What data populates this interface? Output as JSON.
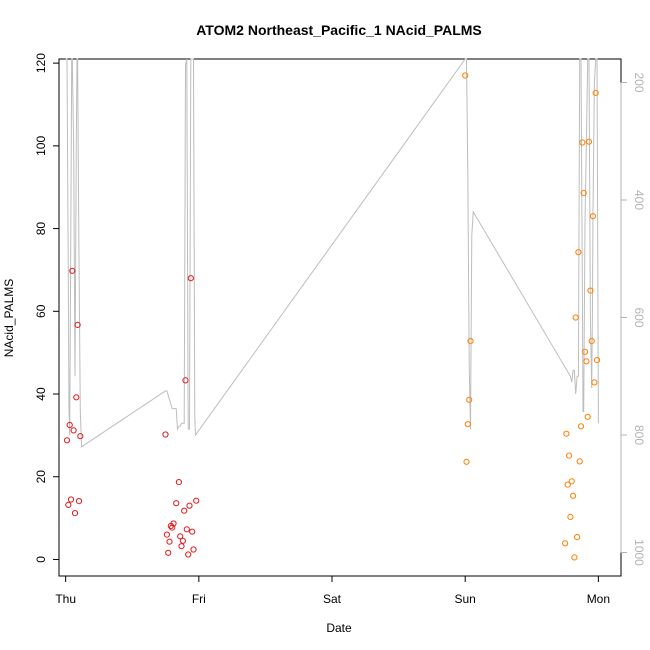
{
  "chart_data": {
    "type": "scatter",
    "title": "ATOM2 Northeast_Pacific_1 NAcid_PALMS",
    "xlabel": "Date",
    "ylabel": "NAcid_PALMS",
    "x_ticks": [
      "Thu",
      "Fri",
      "Sat",
      "Sun",
      "Mon"
    ],
    "xlim": [
      -0.05,
      4.17
    ],
    "ylim": [
      -4,
      121
    ],
    "y_ticks": [
      0,
      20,
      40,
      60,
      80,
      100,
      120
    ],
    "y2_ticks": [
      200,
      400,
      600,
      800,
      1000
    ],
    "y2lim": [
      1040,
      160
    ],
    "grid": false,
    "series": [
      {
        "color": "#e41a1c",
        "points": [
          [
            0.01,
            28.8
          ],
          [
            0.02,
            13.2
          ],
          [
            0.03,
            32.5
          ],
          [
            0.04,
            14.5
          ],
          [
            0.05,
            69.8
          ],
          [
            0.06,
            31.2
          ],
          [
            0.07,
            11.2
          ],
          [
            0.08,
            39.2
          ],
          [
            0.09,
            56.7
          ],
          [
            0.1,
            14.1
          ],
          [
            0.11,
            29.8
          ],
          [
            0.75,
            30.2
          ],
          [
            0.76,
            6.0
          ],
          [
            0.77,
            1.6
          ],
          [
            0.78,
            4.3
          ],
          [
            0.79,
            8.1
          ],
          [
            0.8,
            7.7
          ],
          [
            0.81,
            8.7
          ],
          [
            0.83,
            13.6
          ],
          [
            0.85,
            18.7
          ],
          [
            0.86,
            5.6
          ],
          [
            0.87,
            3.2
          ],
          [
            0.88,
            4.5
          ],
          [
            0.89,
            11.8
          ],
          [
            0.9,
            43.3
          ],
          [
            0.91,
            7.3
          ],
          [
            0.92,
            1.2
          ],
          [
            0.93,
            13.0
          ],
          [
            0.94,
            68.0
          ],
          [
            0.95,
            6.7
          ],
          [
            0.96,
            2.4
          ],
          [
            0.98,
            14.2
          ]
        ]
      },
      {
        "color": "#ff7f00",
        "points": [
          [
            3.0,
            117.0
          ],
          [
            3.01,
            23.6
          ],
          [
            3.02,
            32.7
          ],
          [
            3.03,
            38.6
          ],
          [
            3.04,
            52.8
          ],
          [
            3.75,
            3.9
          ],
          [
            3.76,
            30.4
          ],
          [
            3.77,
            18.1
          ],
          [
            3.78,
            25.1
          ],
          [
            3.79,
            10.3
          ],
          [
            3.8,
            18.9
          ],
          [
            3.81,
            15.4
          ],
          [
            3.82,
            0.5
          ],
          [
            3.83,
            58.5
          ],
          [
            3.84,
            5.4
          ],
          [
            3.85,
            74.3
          ],
          [
            3.86,
            23.7
          ],
          [
            3.87,
            32.2
          ],
          [
            3.88,
            100.8
          ],
          [
            3.89,
            88.6
          ],
          [
            3.9,
            50.2
          ],
          [
            3.91,
            47.9
          ],
          [
            3.92,
            34.5
          ],
          [
            3.93,
            101.0
          ],
          [
            3.94,
            65.0
          ],
          [
            3.95,
            52.8
          ],
          [
            3.96,
            83.0
          ],
          [
            3.97,
            42.8
          ],
          [
            3.98,
            112.8
          ],
          [
            3.99,
            48.2
          ]
        ]
      },
      {
        "color": "#bdbdbd",
        "axis": "right",
        "line": [
          [
            0.0,
            160
          ],
          [
            0.01,
            160
          ],
          [
            0.02,
            530
          ],
          [
            0.025,
            760
          ],
          [
            0.03,
            800
          ],
          [
            0.04,
            400
          ],
          [
            0.045,
            160
          ],
          [
            0.05,
            160
          ],
          [
            0.06,
            300
          ],
          [
            0.07,
            700
          ],
          [
            0.075,
            520
          ],
          [
            0.08,
            300
          ],
          [
            0.085,
            160
          ],
          [
            0.09,
            160
          ],
          [
            0.1,
            500
          ],
          [
            0.11,
            760
          ],
          [
            0.12,
            820
          ],
          [
            0.75,
            725
          ],
          [
            0.76,
            725
          ],
          [
            0.8,
            755
          ],
          [
            0.81,
            755
          ],
          [
            0.815,
            755
          ],
          [
            0.82,
            755
          ],
          [
            0.83,
            755
          ],
          [
            0.84,
            790
          ],
          [
            0.85,
            785
          ],
          [
            0.86,
            785
          ],
          [
            0.87,
            780
          ],
          [
            0.88,
            780
          ],
          [
            0.89,
            780
          ],
          [
            0.9,
            170
          ],
          [
            0.91,
            160
          ],
          [
            0.92,
            790
          ],
          [
            0.93,
            790
          ],
          [
            0.94,
            160
          ],
          [
            0.96,
            160
          ],
          [
            0.97,
            770
          ],
          [
            0.975,
            800
          ],
          [
            3.0,
            160
          ],
          [
            3.01,
            160
          ],
          [
            3.02,
            350
          ],
          [
            3.03,
            680
          ],
          [
            3.04,
            790
          ],
          [
            3.05,
            460
          ],
          [
            3.06,
            420
          ],
          [
            3.79,
            700
          ],
          [
            3.8,
            710
          ],
          [
            3.81,
            690
          ],
          [
            3.82,
            690
          ],
          [
            3.83,
            730
          ],
          [
            3.84,
            700
          ],
          [
            3.85,
            700
          ],
          [
            3.86,
            160
          ],
          [
            3.87,
            160
          ],
          [
            3.88,
            560
          ],
          [
            3.885,
            760
          ],
          [
            3.89,
            760
          ],
          [
            3.9,
            440
          ],
          [
            3.91,
            300
          ],
          [
            3.92,
            160
          ],
          [
            3.93,
            160
          ],
          [
            3.94,
            600
          ],
          [
            3.95,
            720
          ],
          [
            3.955,
            600
          ],
          [
            3.96,
            420
          ],
          [
            3.97,
            200
          ],
          [
            3.98,
            160
          ],
          [
            3.99,
            160
          ],
          [
            4.0,
            780
          ]
        ]
      }
    ]
  }
}
